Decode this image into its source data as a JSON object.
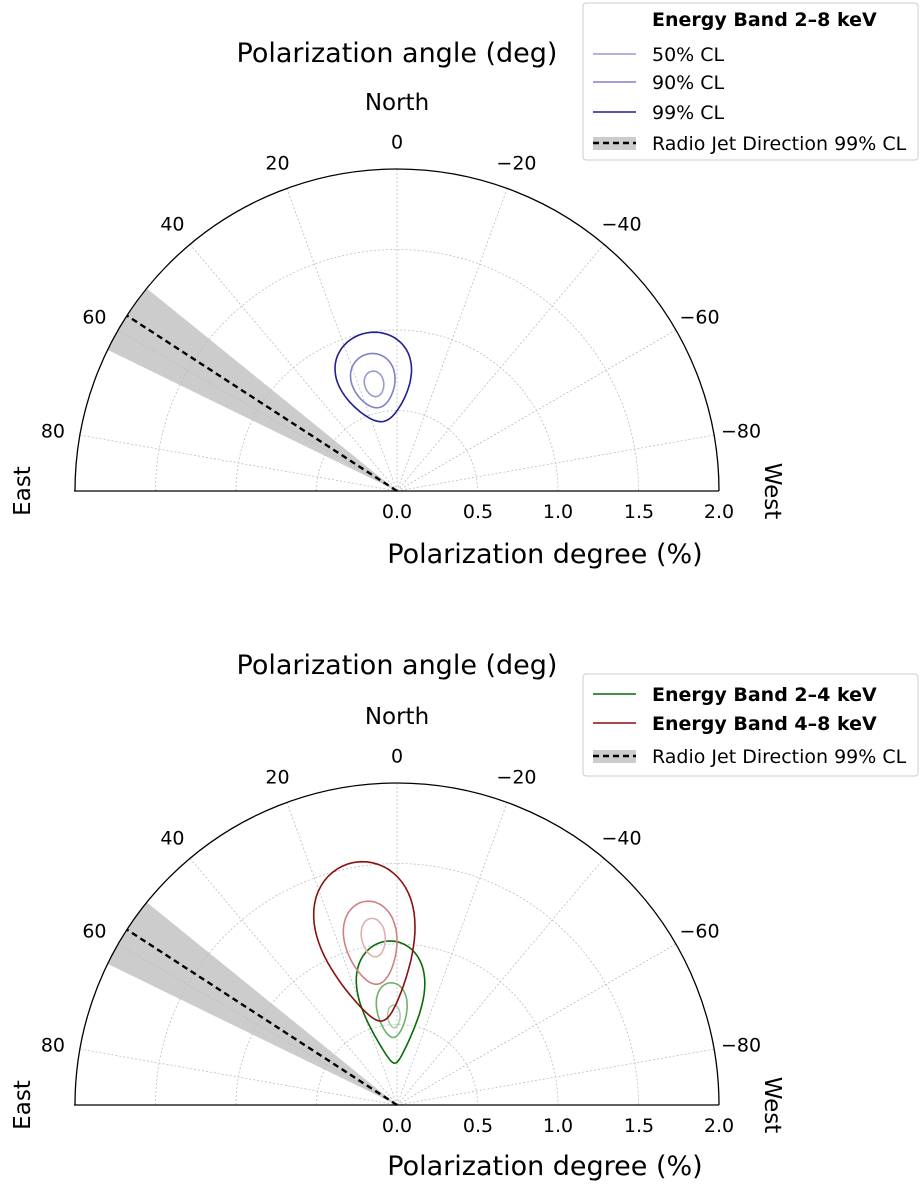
{
  "chart_data": [
    {
      "type": "polar-contour",
      "title": "Polarization angle (deg)",
      "xlabel": "Polarization degree (%)",
      "direction_labels": {
        "north": "North",
        "east": "East",
        "west": "West"
      },
      "radial_range": [
        0,
        2.0
      ],
      "radial_ticks": [
        "0.0",
        "0.5",
        "1.0",
        "1.5",
        "2.0"
      ],
      "angle_range_deg": [
        -90,
        90
      ],
      "angle_ticks": [
        {
          "deg": 80,
          "label": "80"
        },
        {
          "deg": 60,
          "label": "60"
        },
        {
          "deg": 40,
          "label": "40"
        },
        {
          "deg": 20,
          "label": "20"
        },
        {
          "deg": 0,
          "label": "0"
        },
        {
          "deg": -20,
          "label": "−20"
        },
        {
          "deg": -40,
          "label": "−40"
        },
        {
          "deg": -60,
          "label": "−60"
        },
        {
          "deg": -80,
          "label": "−80"
        }
      ],
      "grid": true,
      "radio_jet": {
        "angle_deg": 57,
        "band_deg": [
          51,
          64
        ],
        "label": "Radio Jet Direction 99% CL"
      },
      "legend": {
        "placement": "top-right",
        "title": "Energy Band 2–8 keV",
        "entries": [
          "50% CL",
          "90% CL",
          "99% CL",
          "Radio Jet Direction 99% CL"
        ]
      },
      "series": [
        {
          "name": "50% CL",
          "color": "#9b9bd2",
          "center_pd": 0.68,
          "center_pa_deg": 12,
          "half_width_pd": 0.08,
          "half_width_pa_deg": 5
        },
        {
          "name": "90% CL",
          "color": "#8080c8",
          "center_pd": 0.7,
          "center_pa_deg": 12,
          "half_width_pd": 0.17,
          "half_width_pa_deg": 11
        },
        {
          "name": "99% CL",
          "color": "#1f1f8f",
          "center_pd": 0.72,
          "center_pa_deg": 11,
          "half_width_pd": 0.28,
          "half_width_pa_deg": 18
        }
      ]
    },
    {
      "type": "polar-contour",
      "title": "Polarization angle (deg)",
      "xlabel": "Polarization degree (%)",
      "direction_labels": {
        "north": "North",
        "east": "East",
        "west": "West"
      },
      "radial_range": [
        0,
        2.0
      ],
      "radial_ticks": [
        "0.0",
        "0.5",
        "1.0",
        "1.5",
        "2.0"
      ],
      "angle_range_deg": [
        -90,
        90
      ],
      "angle_ticks": [
        {
          "deg": 80,
          "label": "80"
        },
        {
          "deg": 60,
          "label": "60"
        },
        {
          "deg": 40,
          "label": "40"
        },
        {
          "deg": 20,
          "label": "20"
        },
        {
          "deg": 0,
          "label": "0"
        },
        {
          "deg": -20,
          "label": "−20"
        },
        {
          "deg": -40,
          "label": "−40"
        },
        {
          "deg": -60,
          "label": "−60"
        },
        {
          "deg": -80,
          "label": "−80"
        }
      ],
      "grid": true,
      "radio_jet": {
        "angle_deg": 57,
        "band_deg": [
          51,
          64
        ],
        "label": "Radio Jet Direction 99% CL"
      },
      "legend": {
        "placement": "top-right",
        "entries": [
          "Energy Band 2–4 keV",
          "Energy Band 4–8 keV",
          "Radio Jet Direction 99% CL"
        ]
      },
      "series": [
        {
          "name": "Energy Band 2–4 keV",
          "color": "#0a6b0a",
          "contours": [
            {
              "center_pd": 0.55,
              "center_pa_deg": 2,
              "half_width_pd": 0.07,
              "half_width_pa_deg": 4,
              "color": "#a9cfa9"
            },
            {
              "center_pd": 0.59,
              "center_pa_deg": 3,
              "half_width_pd": 0.17,
              "half_width_pa_deg": 9,
              "color": "#6fb06f"
            },
            {
              "center_pd": 0.64,
              "center_pa_deg": 3,
              "half_width_pd": 0.38,
              "half_width_pa_deg": 17,
              "color": "#0a6b0a"
            }
          ]
        },
        {
          "name": "Energy Band 4–8 keV",
          "color": "#8b0f0f",
          "contours": [
            {
              "center_pd": 1.05,
              "center_pa_deg": 8,
              "half_width_pd": 0.12,
              "half_width_pa_deg": 4,
              "color": "#e0b0b0"
            },
            {
              "center_pd": 1.02,
              "center_pa_deg": 9,
              "half_width_pd": 0.26,
              "half_width_pa_deg": 9,
              "color": "#d08080"
            },
            {
              "center_pd": 1.03,
              "center_pa_deg": 10,
              "half_width_pd": 0.5,
              "half_width_pa_deg": 16,
              "color": "#8b0f0f"
            }
          ]
        }
      ]
    }
  ]
}
